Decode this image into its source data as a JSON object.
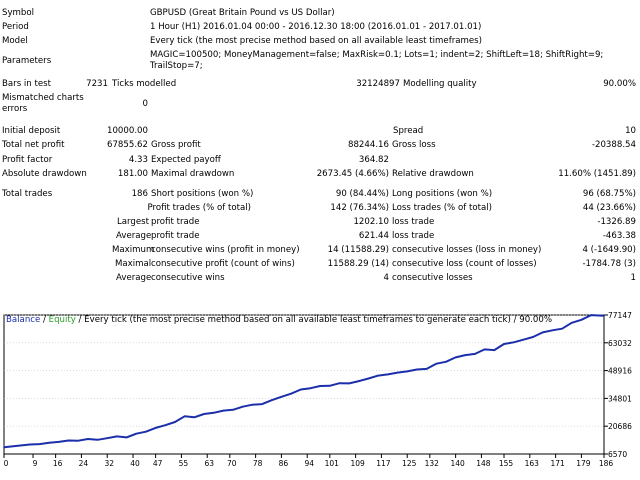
{
  "report": {
    "symbol_label": "Symbol",
    "symbol_value": "GBPUSD (Great Britain Pound vs US Dollar)",
    "period_label": "Period",
    "period_value": "1 Hour (H1) 2016.01.04 00:00 - 2016.12.30 18:00 (2016.01.01 - 2017.01.01)",
    "model_label": "Model",
    "model_value": "Every tick (the most precise method based on all available least timeframes)",
    "parameters_label": "Parameters",
    "parameters_line1": "MAGIC=100500; MoneyManagement=false; MaxRisk=0.1; Lots=1; indent=2; ShiftLeft=18; ShiftRight=9;",
    "parameters_line2": "TrailStop=7;",
    "bars_label": "Bars in test",
    "bars_value": "7231",
    "ticks_label": "Ticks modelled",
    "ticks_value": "32124897",
    "quality_label": "Modelling quality",
    "quality_value": "90.00%",
    "mismatched_label_1": "Mismatched charts",
    "mismatched_label_2": "errors",
    "mismatched_value": "0",
    "initial_deposit_label": "Initial deposit",
    "initial_deposit_value": "10000.00",
    "spread_label": "Spread",
    "spread_value": "10",
    "total_net_profit_label": "Total net profit",
    "total_net_profit_value": "67855.62",
    "gross_profit_label": "Gross profit",
    "gross_profit_value": "88244.16",
    "gross_loss_label": "Gross loss",
    "gross_loss_value": "-20388.54",
    "profit_factor_label": "Profit factor",
    "profit_factor_value": "4.33",
    "expected_payoff_label": "Expected payoff",
    "expected_payoff_value": "364.82",
    "absolute_drawdown_label": "Absolute drawdown",
    "absolute_drawdown_value": "181.00",
    "maximal_drawdown_label": "Maximal drawdown",
    "maximal_drawdown_value": "2673.45 (4.66%)",
    "relative_drawdown_label": "Relative drawdown",
    "relative_drawdown_value": "11.60% (1451.89)",
    "total_trades_label": "Total trades",
    "total_trades_value": "186",
    "short_positions_label": "Short positions (won %)",
    "short_positions_value": "90 (84.44%)",
    "long_positions_label": "Long positions (won %)",
    "long_positions_value": "96 (68.75%)",
    "profit_trades_label": "Profit trades (% of total)",
    "profit_trades_value": "142 (76.34%)",
    "loss_trades_label": "Loss trades (% of total)",
    "loss_trades_value": "44 (23.66%)",
    "largest_label": "Largest",
    "largest_profit_label": "profit trade",
    "largest_profit_value": "1202.10",
    "largest_loss_label": "loss trade",
    "largest_loss_value": "-1326.89",
    "average_label": "Average",
    "average_profit_label": "profit trade",
    "average_profit_value": "621.44",
    "average_loss_label": "loss trade",
    "average_loss_value": "-463.38",
    "max_label": "Maximum",
    "max_cons_wins_label": "consecutive wins (profit in money)",
    "max_cons_wins_value": "14 (11588.29)",
    "max_cons_losses_label": "consecutive losses (loss in money)",
    "max_cons_losses_value": "4 (-1649.90)",
    "maximal_label": "Maximal",
    "maximal_cons_profit_label": "consecutive profit (count of wins)",
    "maximal_cons_profit_value": "11588.29 (14)",
    "maximal_cons_loss_label": "consecutive loss (count of losses)",
    "maximal_cons_loss_value": "-1784.78 (3)",
    "avg_cons_label": "Average",
    "avg_cons_wins_label": "consecutive wins",
    "avg_cons_wins_value": "4",
    "avg_cons_losses_label": "consecutive losses",
    "avg_cons_losses_value": "1"
  },
  "chart": {
    "legend_balance": "Balance",
    "legend_sep1": " / ",
    "legend_equity": "Equity",
    "legend_rest": " / Every tick (the most precise method based on all available least timeframes to generate each tick) / 90.00%",
    "colors": {
      "balance": "#1c2faa",
      "equity": "#2a9a2a",
      "grid": "#c8c8c8",
      "axis": "#000000"
    }
  },
  "chart_data": {
    "type": "line",
    "title": "",
    "xlabel": "",
    "ylabel": "",
    "x_ticks": [
      0,
      9,
      16,
      24,
      32,
      40,
      47,
      55,
      63,
      70,
      78,
      86,
      94,
      101,
      109,
      117,
      125,
      132,
      140,
      148,
      155,
      163,
      171,
      179,
      186
    ],
    "y_ticks": [
      6570,
      20686,
      34801,
      48916,
      63032,
      77147
    ],
    "xlim": [
      0,
      186
    ],
    "ylim": [
      6570,
      77147
    ],
    "grid": true,
    "series": [
      {
        "name": "Balance",
        "x": [
          0,
          4,
          8,
          11,
          14,
          17,
          20,
          23,
          26,
          29,
          32,
          35,
          38,
          41,
          44,
          47,
          50,
          53,
          56,
          59,
          62,
          65,
          68,
          71,
          74,
          77,
          80,
          83,
          86,
          89,
          92,
          95,
          98,
          101,
          104,
          107,
          110,
          113,
          116,
          119,
          122,
          125,
          128,
          131,
          134,
          137,
          140,
          143,
          146,
          149,
          152,
          155,
          158,
          161,
          164,
          167,
          170,
          173,
          176,
          179,
          182,
          186
        ],
        "y": [
          10000,
          10700,
          11400,
          11600,
          12300,
          12700,
          13400,
          13300,
          14200,
          13800,
          14600,
          15500,
          15000,
          16900,
          17900,
          19800,
          21200,
          22800,
          25700,
          25200,
          26900,
          27500,
          28600,
          29000,
          30600,
          31600,
          31900,
          33900,
          35600,
          37200,
          39300,
          40000,
          41100,
          41200,
          42500,
          42400,
          43600,
          44900,
          46400,
          47000,
          47900,
          48500,
          49500,
          49800,
          52400,
          53400,
          55600,
          56800,
          57400,
          59700,
          59300,
          62400,
          63300,
          64600,
          66000,
          68300,
          69400,
          70200,
          73200,
          74700,
          77100,
          76800
        ]
      }
    ]
  }
}
